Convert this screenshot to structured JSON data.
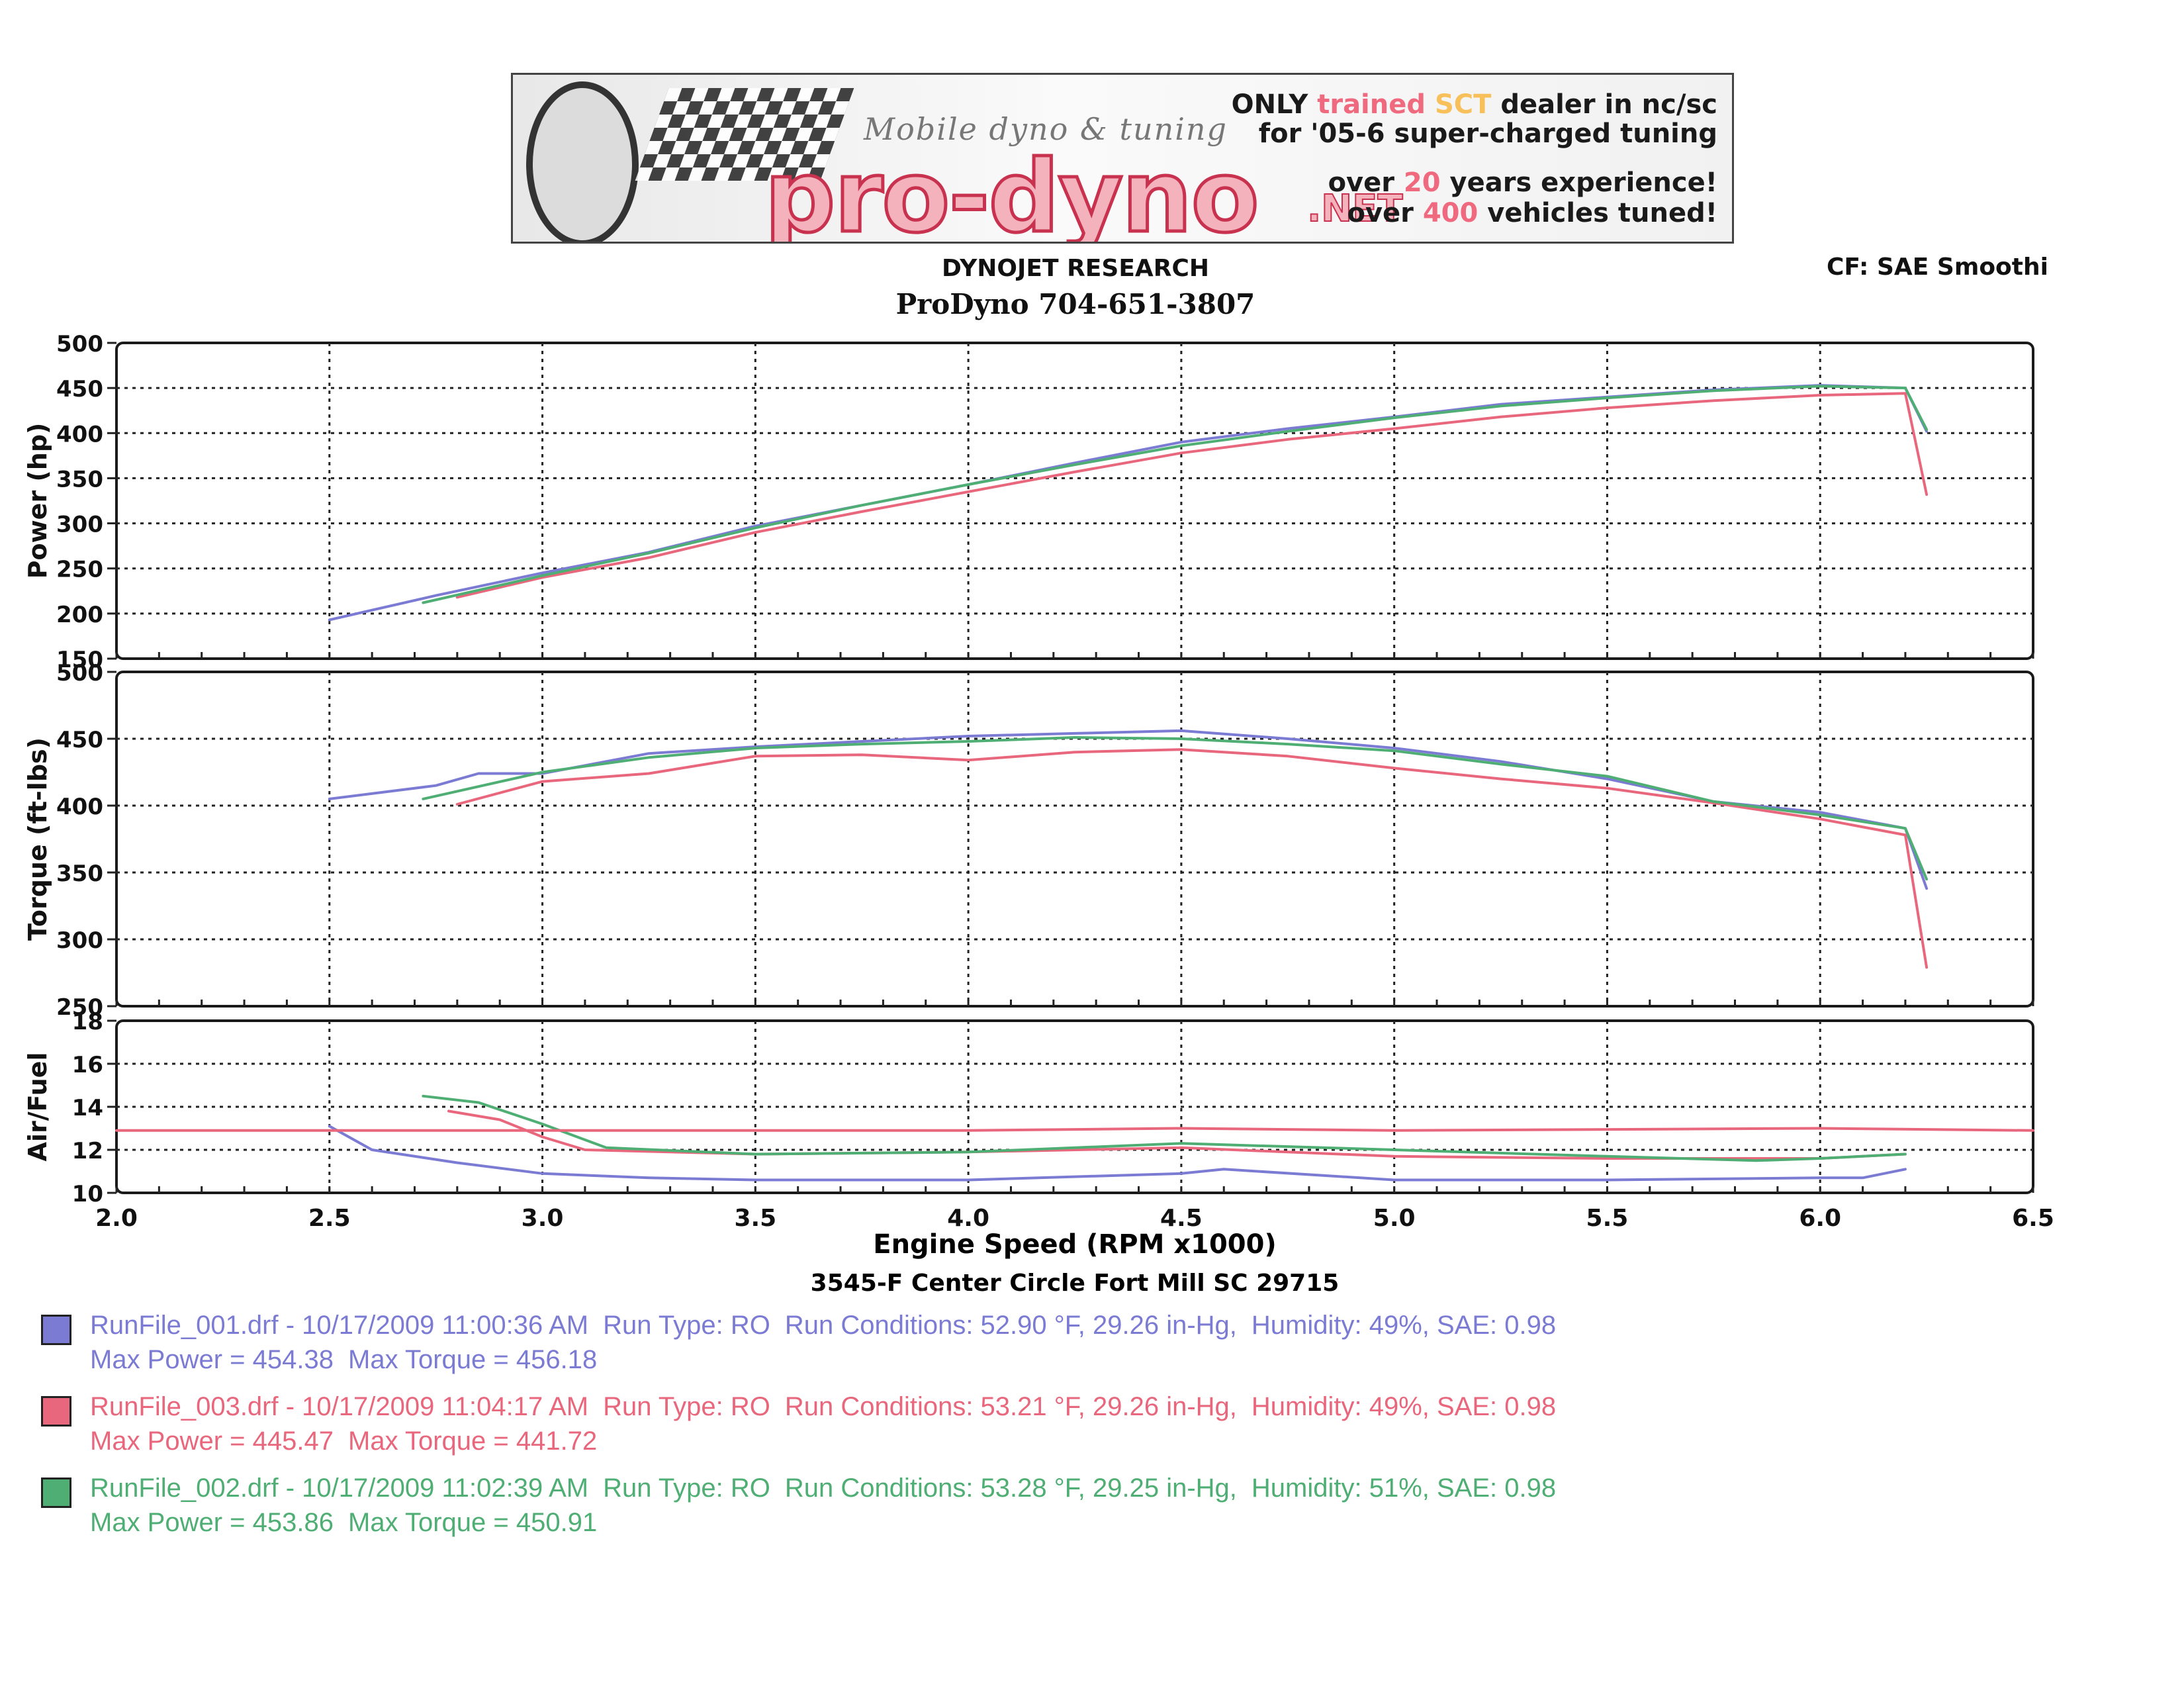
{
  "banner": {
    "tagline": "Mobile dyno & tuning",
    "brand": "pro-dyno",
    "brand_suffix": ".NET",
    "line1_a": "ONLY ",
    "line1_b": "trained ",
    "line1_c": "SCT ",
    "line1_d": "dealer in nc/sc",
    "line2": "for '05-6 super-charged tuning",
    "line3_a": "over ",
    "line3_b": "20",
    "line3_c": " years experience!",
    "line4_a": "over ",
    "line4_b": "400",
    "line4_c": " vehicles tuned!"
  },
  "header": {
    "title": "DYNOJET RESEARCH",
    "subtitle": "ProDyno 704-651-3807",
    "cf": "CF: SAE  Smoothi",
    "address": "3545-F Center Circle Fort Mill SC 29715"
  },
  "colors": {
    "run1": "#7b7bd4",
    "run3": "#e9677c",
    "run2": "#4fae74"
  },
  "chart_data": {
    "type": "line",
    "xlabel": "Engine Speed (RPM x1000)",
    "xlim": [
      2.0,
      6.5
    ],
    "x_ticks": [
      "2.0",
      "2.5",
      "3.0",
      "3.5",
      "4.0",
      "4.5",
      "5.0",
      "5.5",
      "6.0",
      "6.5"
    ],
    "grid": true,
    "panels": [
      {
        "id": "power",
        "ylabel": "Power (hp)",
        "ylim": [
          150,
          500
        ],
        "y_ticks": [
          "150",
          "200",
          "250",
          "300",
          "350",
          "400",
          "450",
          "500"
        ],
        "series": [
          {
            "name": "RunFile_001.drf",
            "color": "#7b7bd4",
            "x": [
              2.5,
              2.75,
              3.0,
              3.25,
              3.5,
              3.75,
              4.0,
              4.25,
              4.5,
              4.75,
              5.0,
              5.25,
              5.5,
              5.75,
              6.0,
              6.2,
              6.25
            ],
            "y": [
              193,
              220,
              245,
              268,
              297,
              320,
              343,
              367,
              390,
              405,
              418,
              432,
              440,
              448,
              453,
              450,
              402
            ]
          },
          {
            "name": "RunFile_003.drf",
            "color": "#e9677c",
            "x": [
              2.8,
              3.0,
              3.25,
              3.5,
              3.75,
              4.0,
              4.25,
              4.5,
              4.75,
              5.0,
              5.25,
              5.5,
              5.75,
              6.0,
              6.2,
              6.25
            ],
            "y": [
              218,
              240,
              262,
              290,
              313,
              335,
              357,
              378,
              393,
              405,
              418,
              428,
              436,
              442,
              444,
              332
            ]
          },
          {
            "name": "RunFile_002.drf",
            "color": "#4fae74",
            "x": [
              2.72,
              3.0,
              3.25,
              3.5,
              3.75,
              4.0,
              4.25,
              4.5,
              4.75,
              5.0,
              5.25,
              5.5,
              5.75,
              6.0,
              6.2,
              6.25
            ],
            "y": [
              212,
              242,
              267,
              295,
              320,
              343,
              365,
              386,
              402,
              417,
              430,
              439,
              447,
              452,
              450,
              404
            ]
          }
        ]
      },
      {
        "id": "torque",
        "ylabel": "Torque (ft-lbs)",
        "ylim": [
          250,
          500
        ],
        "y_ticks": [
          "250",
          "300",
          "350",
          "400",
          "450",
          "500"
        ],
        "series": [
          {
            "name": "RunFile_001.drf",
            "color": "#7b7bd4",
            "x": [
              2.5,
              2.75,
              2.85,
              3.0,
              3.25,
              3.5,
              3.75,
              4.0,
              4.25,
              4.5,
              4.75,
              5.0,
              5.25,
              5.5,
              5.75,
              6.0,
              6.2,
              6.25
            ],
            "y": [
              405,
              415,
              424,
              424,
              439,
              444,
              448,
              452,
              454,
              456,
              450,
              443,
              433,
              420,
              403,
              395,
              383,
              338
            ]
          },
          {
            "name": "RunFile_003.drf",
            "color": "#e9677c",
            "x": [
              2.8,
              3.0,
              3.25,
              3.5,
              3.75,
              4.0,
              4.25,
              4.5,
              4.75,
              5.0,
              5.25,
              5.5,
              5.75,
              6.0,
              6.2,
              6.25
            ],
            "y": [
              401,
              418,
              424,
              437,
              438,
              434,
              440,
              442,
              437,
              428,
              420,
              413,
              402,
              390,
              378,
              279
            ]
          },
          {
            "name": "RunFile_002.drf",
            "color": "#4fae74",
            "x": [
              2.72,
              3.0,
              3.25,
              3.5,
              3.75,
              4.0,
              4.25,
              4.5,
              4.75,
              5.0,
              5.25,
              5.5,
              5.75,
              6.0,
              6.2,
              6.25
            ],
            "y": [
              405,
              425,
              436,
              443,
              446,
              448,
              451,
              450,
              446,
              441,
              431,
              422,
              403,
              393,
              383,
              345
            ]
          }
        ]
      },
      {
        "id": "afr",
        "ylabel": "Air/Fuel",
        "ylim": [
          10,
          18
        ],
        "y_ticks": [
          "10",
          "12",
          "14",
          "16",
          "18"
        ],
        "series": [
          {
            "name": "RunFile_001.drf",
            "color": "#7b7bd4",
            "x": [
              2.5,
              2.6,
              2.8,
              3.0,
              3.25,
              3.5,
              4.0,
              4.5,
              4.6,
              5.0,
              5.5,
              6.0,
              6.1,
              6.2
            ],
            "y": [
              13.1,
              12.0,
              11.4,
              10.9,
              10.7,
              10.6,
              10.6,
              10.9,
              11.1,
              10.6,
              10.6,
              10.7,
              10.7,
              11.1
            ]
          },
          {
            "name": "RunFile_003.drf",
            "color": "#e9677c",
            "x": [
              2.78,
              2.9,
              3.0,
              3.1,
              3.5,
              4.0,
              4.5,
              5.0,
              5.5,
              6.0,
              6.2
            ],
            "y": [
              13.8,
              13.4,
              12.6,
              12.0,
              11.8,
              11.9,
              12.1,
              11.7,
              11.6,
              11.6,
              11.8
            ]
          },
          {
            "name": "RunFile_002.drf",
            "color": "#4fae74",
            "x": [
              2.72,
              2.85,
              3.0,
              3.15,
              3.5,
              4.0,
              4.5,
              5.0,
              5.5,
              5.85,
              6.0,
              6.2
            ],
            "y": [
              14.5,
              14.2,
              13.2,
              12.1,
              11.8,
              11.9,
              12.3,
              12.0,
              11.7,
              11.5,
              11.6,
              11.8
            ]
          },
          {
            "name": "",
            "color": "#e9677c",
            "x": [
              2.0,
              3.0,
              4.0,
              4.5,
              5.0,
              6.0,
              6.5
            ],
            "y": [
              12.9,
              12.9,
              12.9,
              13.0,
              12.9,
              13.0,
              12.9
            ]
          }
        ]
      }
    ]
  },
  "legend": [
    {
      "color": "#7b7bd4",
      "line1": {
        "file": "RunFile_001.drf - 10/17/2009 11:00:36 AM",
        "run_type": "Run Type: RO",
        "conditions": "Run Conditions: 52.90 °F, 29.26 in-Hg,",
        "humidity": "Humidity:  49%, SAE: 0.98"
      },
      "line2": {
        "max_power": "Max Power = 454.38",
        "max_torque": "Max Torque = 456.18"
      }
    },
    {
      "color": "#e9677c",
      "line1": {
        "file": "RunFile_003.drf - 10/17/2009 11:04:17 AM",
        "run_type": "Run Type: RO",
        "conditions": "Run Conditions: 53.21 °F, 29.26 in-Hg,",
        "humidity": "Humidity:  49%, SAE: 0.98"
      },
      "line2": {
        "max_power": "Max Power = 445.47",
        "max_torque": "Max Torque = 441.72"
      }
    },
    {
      "color": "#4fae74",
      "line1": {
        "file": "RunFile_002.drf - 10/17/2009 11:02:39 AM",
        "run_type": "Run Type: RO",
        "conditions": "Run Conditions: 53.28 °F, 29.25 in-Hg,",
        "humidity": "Humidity:  51%, SAE: 0.98"
      },
      "line2": {
        "max_power": "Max Power = 453.86",
        "max_torque": "Max Torque = 450.91"
      }
    }
  ]
}
